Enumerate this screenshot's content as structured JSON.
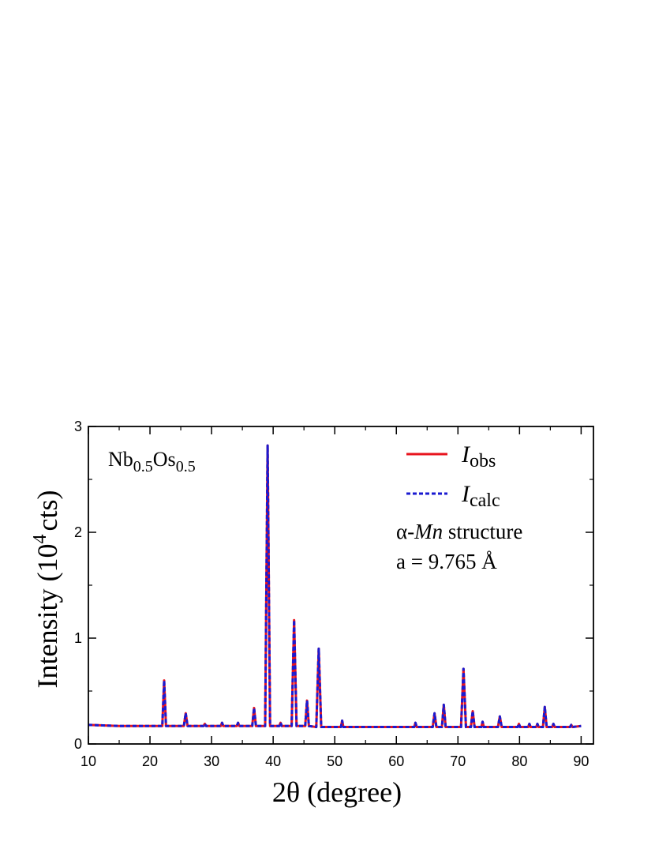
{
  "chart_data": {
    "type": "line",
    "xlabel": "2θ (degree)",
    "ylabel": [
      "Intensity (10",
      "4",
      "cts)"
    ],
    "annotation": [
      "Nb",
      "0.5",
      "Os",
      "0.5"
    ],
    "structure": [
      "α-",
      "Mn",
      " structure"
    ],
    "lattice": "a = 9.765 Å",
    "x": [
      10,
      15,
      20,
      22.0,
      22.3,
      22.6,
      25.5,
      25.8,
      26.1,
      28.7,
      28.9,
      29.1,
      31.5,
      31.7,
      31.9,
      34.1,
      34.3,
      34.5,
      36.6,
      36.9,
      37.2,
      38.7,
      39.1,
      39.5,
      41.0,
      41.2,
      41.4,
      43.0,
      43.4,
      43.8,
      45.2,
      45.5,
      45.8,
      47.0,
      47.4,
      47.8,
      51.0,
      51.2,
      51.4,
      55,
      60,
      62.9,
      63.1,
      63.3,
      65.9,
      66.2,
      66.5,
      67.4,
      67.7,
      68.0,
      70.5,
      70.9,
      71.3,
      72.1,
      72.4,
      72.7,
      73.8,
      74.0,
      74.2,
      76.5,
      76.8,
      77.1,
      79.7,
      79.9,
      80.1,
      81.4,
      81.6,
      81.8,
      82.7,
      82.9,
      83.1,
      83.8,
      84.1,
      84.4,
      85.3,
      85.5,
      85.7,
      88.2,
      88.4,
      88.6,
      90
    ],
    "series": [
      {
        "name": "Iobs",
        "color": "#e8141e",
        "dash": false,
        "values": [
          0.18,
          0.17,
          0.17,
          0.17,
          0.6,
          0.17,
          0.17,
          0.29,
          0.17,
          0.17,
          0.19,
          0.17,
          0.17,
          0.2,
          0.17,
          0.17,
          0.2,
          0.17,
          0.17,
          0.34,
          0.17,
          0.17,
          2.82,
          0.17,
          0.17,
          0.2,
          0.17,
          0.17,
          1.17,
          0.17,
          0.17,
          0.41,
          0.17,
          0.16,
          0.9,
          0.16,
          0.16,
          0.22,
          0.16,
          0.16,
          0.16,
          0.16,
          0.2,
          0.16,
          0.16,
          0.29,
          0.16,
          0.16,
          0.37,
          0.16,
          0.16,
          0.71,
          0.16,
          0.16,
          0.31,
          0.16,
          0.16,
          0.21,
          0.16,
          0.16,
          0.26,
          0.16,
          0.16,
          0.19,
          0.16,
          0.16,
          0.19,
          0.16,
          0.16,
          0.19,
          0.16,
          0.16,
          0.35,
          0.16,
          0.16,
          0.19,
          0.16,
          0.16,
          0.18,
          0.16,
          0.17
        ]
      },
      {
        "name": "Icalc",
        "color": "#1a1ad0",
        "dash": true,
        "values": [
          0.18,
          0.17,
          0.17,
          0.17,
          0.6,
          0.17,
          0.17,
          0.29,
          0.17,
          0.17,
          0.19,
          0.17,
          0.17,
          0.2,
          0.17,
          0.17,
          0.2,
          0.17,
          0.17,
          0.34,
          0.17,
          0.17,
          2.82,
          0.17,
          0.17,
          0.2,
          0.17,
          0.17,
          1.17,
          0.17,
          0.17,
          0.41,
          0.17,
          0.16,
          0.9,
          0.16,
          0.16,
          0.22,
          0.16,
          0.16,
          0.16,
          0.16,
          0.2,
          0.16,
          0.16,
          0.29,
          0.16,
          0.16,
          0.37,
          0.16,
          0.16,
          0.71,
          0.16,
          0.16,
          0.31,
          0.16,
          0.16,
          0.21,
          0.16,
          0.16,
          0.26,
          0.16,
          0.16,
          0.19,
          0.16,
          0.16,
          0.19,
          0.16,
          0.16,
          0.19,
          0.16,
          0.16,
          0.35,
          0.16,
          0.16,
          0.19,
          0.16,
          0.16,
          0.18,
          0.16,
          0.17
        ]
      }
    ],
    "xlim": [
      10,
      92
    ],
    "xticks": [
      10,
      20,
      30,
      40,
      50,
      60,
      70,
      80,
      90
    ],
    "ylim": [
      0,
      3
    ],
    "yticks": [
      0,
      1,
      2,
      3
    ],
    "grid": false,
    "legend": "upper right"
  }
}
